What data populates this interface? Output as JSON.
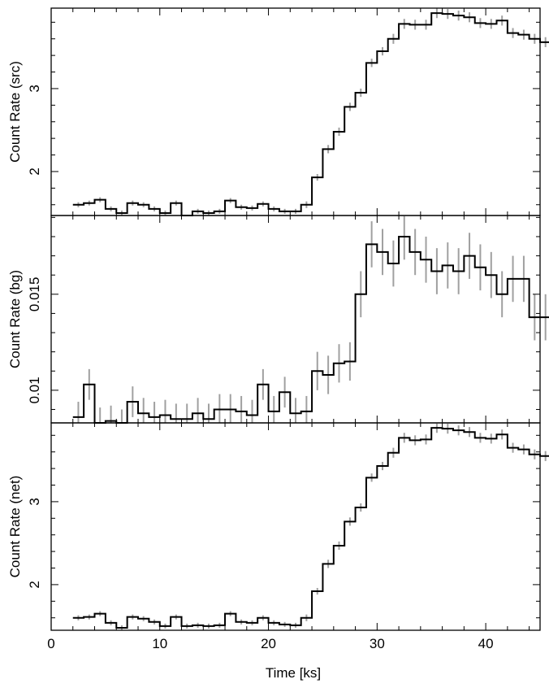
{
  "chart_data": [
    {
      "type": "line",
      "panel": "src",
      "ylabel": "Count Rate (src)",
      "xlabel": "",
      "xlim": [
        0,
        45
      ],
      "ylim": [
        1.47,
        3.97
      ],
      "xticks": [
        0,
        10,
        20,
        30,
        40
      ],
      "xtick_labels": [
        "",
        "",
        "",
        "",
        ""
      ],
      "yticks": [
        2,
        3
      ],
      "ytick_labels": [
        "2",
        "3"
      ],
      "bin_start": 2,
      "bin_width": 1.0,
      "values": [
        1.6,
        1.62,
        1.66,
        1.55,
        1.5,
        1.62,
        1.6,
        1.55,
        1.5,
        1.62,
        1.45,
        1.52,
        1.5,
        1.52,
        1.65,
        1.57,
        1.56,
        1.61,
        1.55,
        1.52,
        1.52,
        1.6,
        1.93,
        2.27,
        2.48,
        2.78,
        2.95,
        3.31,
        3.45,
        3.6,
        3.78,
        3.77,
        3.77,
        3.91,
        3.9,
        3.88,
        3.86,
        3.79,
        3.78,
        3.82,
        3.67,
        3.65,
        3.6,
        3.56
      ],
      "errors": [
        0.03,
        0.03,
        0.03,
        0.03,
        0.03,
        0.03,
        0.03,
        0.03,
        0.03,
        0.03,
        0.03,
        0.03,
        0.03,
        0.03,
        0.03,
        0.03,
        0.03,
        0.03,
        0.03,
        0.03,
        0.03,
        0.04,
        0.04,
        0.05,
        0.05,
        0.05,
        0.05,
        0.05,
        0.05,
        0.06,
        0.06,
        0.06,
        0.06,
        0.06,
        0.06,
        0.06,
        0.06,
        0.06,
        0.06,
        0.06,
        0.06,
        0.06,
        0.06,
        0.06
      ]
    },
    {
      "type": "line",
      "panel": "bg",
      "ylabel": "Count Rate (bg)",
      "xlabel": "",
      "xlim": [
        0,
        45
      ],
      "ylim": [
        0.0083,
        0.0191
      ],
      "xticks": [
        0,
        10,
        20,
        30,
        40
      ],
      "xtick_labels": [
        "",
        "",
        "",
        "",
        ""
      ],
      "yticks": [
        0.01,
        0.015
      ],
      "ytick_labels": [
        "0.01",
        "0.015"
      ],
      "bin_start": 2,
      "bin_width": 1.0,
      "values": [
        0.0086,
        0.0103,
        0.0083,
        0.0084,
        0.0082,
        0.0094,
        0.0088,
        0.0086,
        0.0087,
        0.0085,
        0.0085,
        0.0088,
        0.0085,
        0.009,
        0.009,
        0.0089,
        0.0087,
        0.0103,
        0.0089,
        0.0099,
        0.0088,
        0.0089,
        0.011,
        0.0108,
        0.0114,
        0.0115,
        0.015,
        0.0176,
        0.0172,
        0.0166,
        0.018,
        0.0172,
        0.0168,
        0.0162,
        0.0165,
        0.0162,
        0.017,
        0.0164,
        0.016,
        0.015,
        0.0158,
        0.0158,
        0.0138,
        0.0138
      ],
      "errors": [
        0.0008,
        0.0008,
        0.0008,
        0.0008,
        0.0008,
        0.0008,
        0.0008,
        0.0008,
        0.0008,
        0.0008,
        0.0008,
        0.0008,
        0.0008,
        0.0008,
        0.0008,
        0.0008,
        0.0008,
        0.0008,
        0.0008,
        0.0008,
        0.0008,
        0.0008,
        0.001,
        0.001,
        0.001,
        0.001,
        0.0012,
        0.0012,
        0.0012,
        0.0012,
        0.0012,
        0.0012,
        0.0012,
        0.0012,
        0.0012,
        0.0012,
        0.0012,
        0.0012,
        0.0012,
        0.0012,
        0.0012,
        0.0012,
        0.0012,
        0.0012
      ]
    },
    {
      "type": "line",
      "panel": "net",
      "ylabel": "Count Rate (net)",
      "xlabel": "Time [ks]",
      "xlim": [
        0,
        45
      ],
      "ylim": [
        1.45,
        3.95
      ],
      "xticks": [
        0,
        10,
        20,
        30,
        40
      ],
      "xtick_labels": [
        "0",
        "10",
        "20",
        "30",
        "40"
      ],
      "yticks": [
        2,
        3
      ],
      "ytick_labels": [
        "2",
        "3"
      ],
      "bin_start": 2,
      "bin_width": 1.0,
      "values": [
        1.6,
        1.61,
        1.65,
        1.54,
        1.48,
        1.61,
        1.59,
        1.55,
        1.5,
        1.61,
        1.5,
        1.51,
        1.5,
        1.51,
        1.65,
        1.55,
        1.54,
        1.6,
        1.54,
        1.52,
        1.51,
        1.6,
        1.92,
        2.25,
        2.47,
        2.76,
        2.93,
        3.29,
        3.43,
        3.59,
        3.77,
        3.74,
        3.75,
        3.89,
        3.88,
        3.86,
        3.84,
        3.77,
        3.76,
        3.81,
        3.65,
        3.63,
        3.57,
        3.55
      ],
      "errors": [
        0.03,
        0.03,
        0.03,
        0.03,
        0.03,
        0.03,
        0.03,
        0.03,
        0.03,
        0.03,
        0.03,
        0.03,
        0.03,
        0.03,
        0.03,
        0.03,
        0.03,
        0.03,
        0.03,
        0.03,
        0.03,
        0.04,
        0.04,
        0.05,
        0.05,
        0.05,
        0.05,
        0.05,
        0.05,
        0.06,
        0.06,
        0.06,
        0.06,
        0.06,
        0.06,
        0.06,
        0.06,
        0.06,
        0.06,
        0.06,
        0.06,
        0.06,
        0.06,
        0.06
      ]
    }
  ],
  "colors": {
    "line": "#000000",
    "error_bar": "#a0a0a0"
  }
}
